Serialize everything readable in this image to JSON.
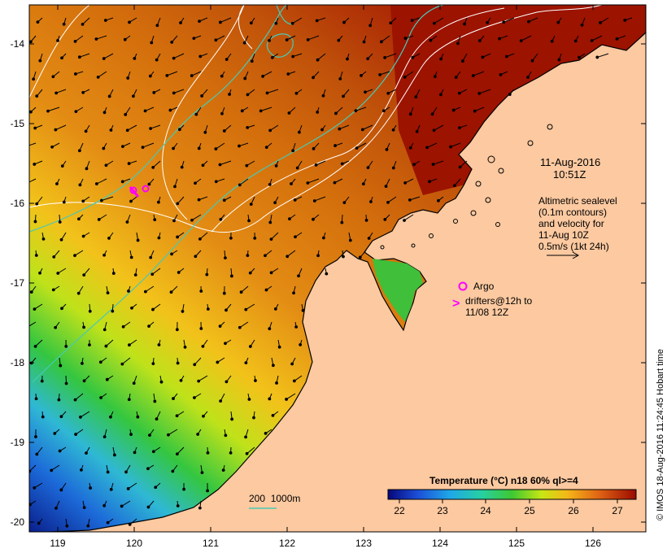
{
  "map": {
    "x_tick_labels": [
      "119",
      "120",
      "121",
      "122",
      "123",
      "124",
      "125",
      "126"
    ],
    "y_tick_labels": [
      "-14",
      "-15",
      "-16",
      "-17",
      "-18",
      "-19",
      "-20"
    ],
    "colors": {
      "land": "#fcc9a0",
      "coast": "#000000",
      "contour": "#ffffff",
      "isobath": "#49c9b4",
      "argo": "#ff00ff"
    }
  },
  "annotations": {
    "date": "11-Aug-2016",
    "time": "10:51Z",
    "altimetry_lines": [
      "Altimetric sealevel",
      "(0.1m contours)",
      "and velocity for",
      "11-Aug 10Z",
      "0.5m/s (1kt 24h)"
    ],
    "argo_label": "Argo",
    "drifter_symbol": ">",
    "drifter_lines": [
      "drifters@12h to",
      "11/08 12Z"
    ],
    "depth_legend": "200  1000m"
  },
  "colorbar": {
    "title": "Temperature (°C) n18 60% ql>=4",
    "tick_labels": [
      "22",
      "23",
      "24",
      "25",
      "26",
      "27"
    ]
  },
  "credit": "© IMOS 18-Aug-2016 11:24:45 Hobart time"
}
